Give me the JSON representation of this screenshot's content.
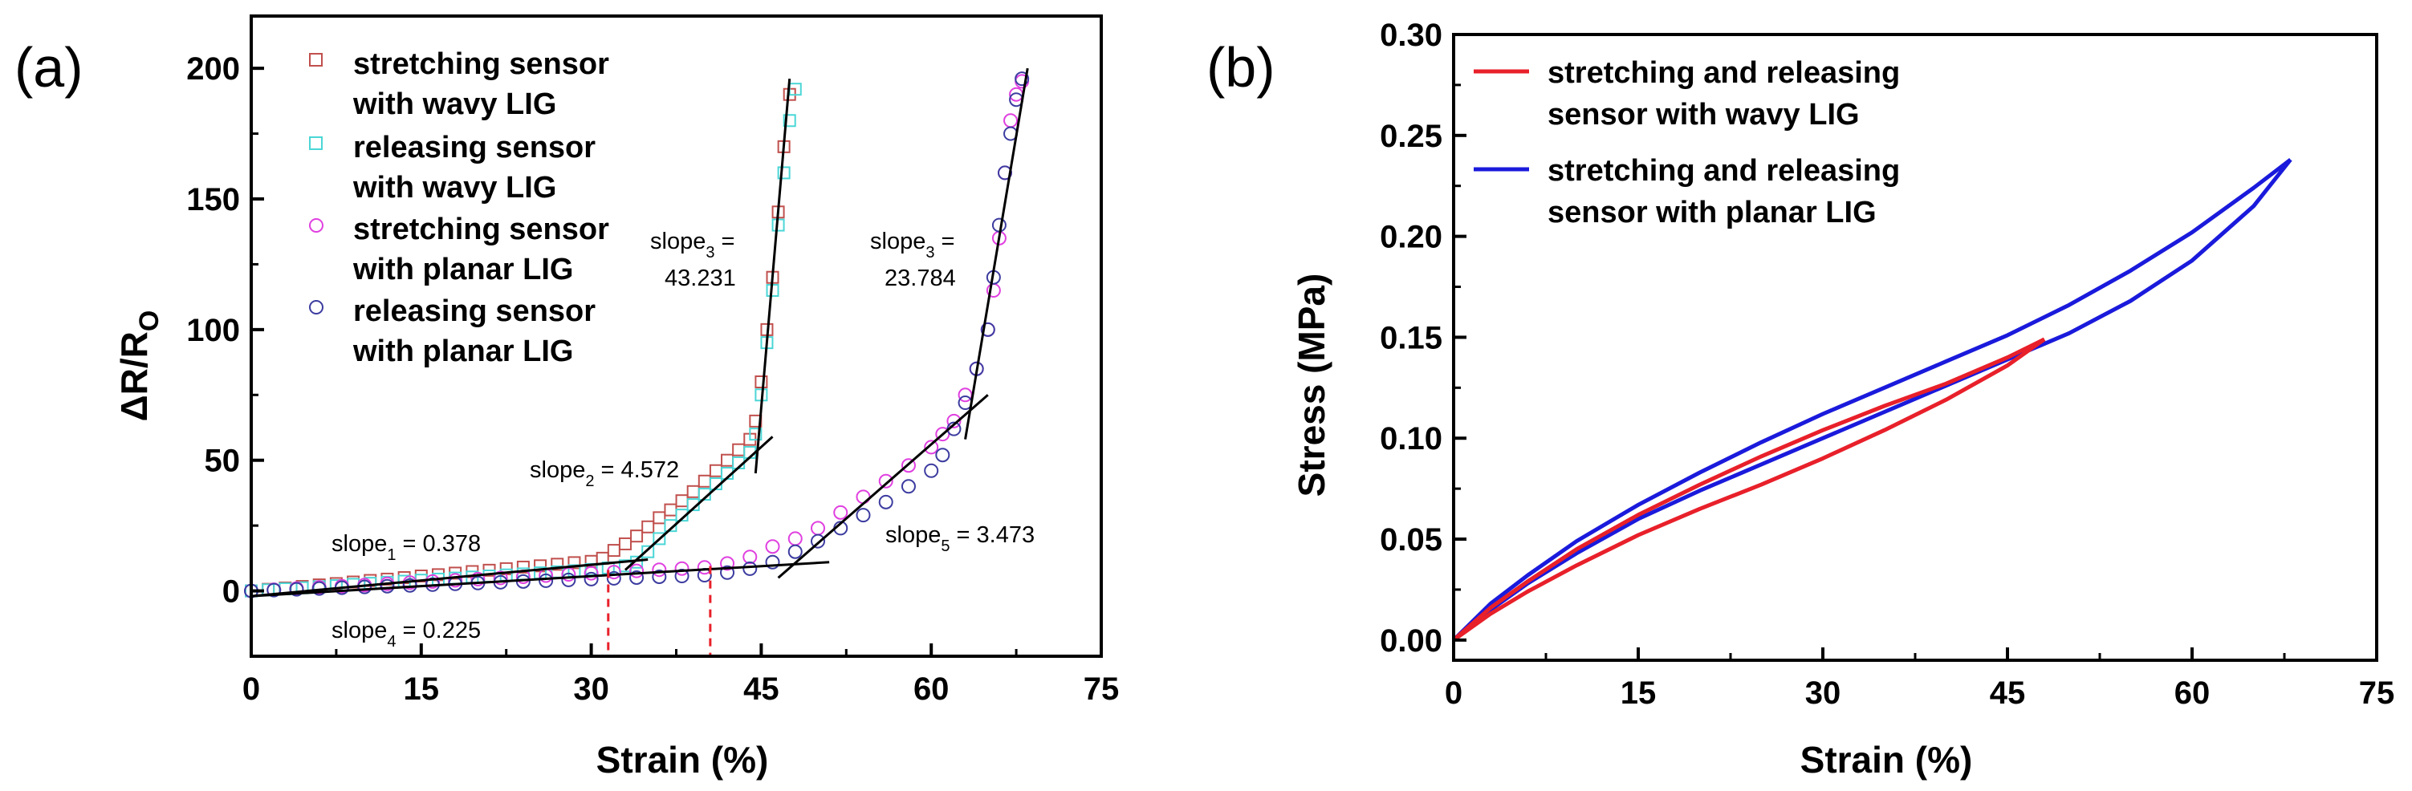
{
  "chart_data": [
    {
      "panel": "(a)",
      "type": "scatter",
      "xlabel": "Strain (%)",
      "ylabel_main": "ΔR/R",
      "ylabel_sub": "O",
      "xlim": [
        0,
        75
      ],
      "ylim": [
        -25,
        220
      ],
      "xticks": [
        "0",
        "15",
        "30",
        "45",
        "60",
        "75"
      ],
      "yticks": [
        "0",
        "50",
        "100",
        "150",
        "200"
      ],
      "grid": false,
      "legend_position": "top-left",
      "series": [
        {
          "name_line1": "stretching sensor",
          "name_line2": "with wavy LIG",
          "marker": "square",
          "color": "#c0504d",
          "x": [
            0,
            1.5,
            3,
            4.5,
            6,
            7.5,
            9,
            10.5,
            12,
            13.5,
            15,
            16.5,
            18,
            19.5,
            21,
            22.5,
            24,
            25.5,
            27,
            28.5,
            30,
            31,
            32,
            33,
            34,
            35,
            36,
            37,
            38,
            39,
            40,
            41,
            42,
            43,
            44,
            44.5,
            45,
            45.5,
            46,
            46.5,
            47,
            47.5
          ],
          "y": [
            0,
            0.6,
            1.1,
            1.7,
            2.3,
            2.8,
            3.4,
            4,
            4.5,
            5.1,
            5.7,
            6.2,
            6.8,
            7.4,
            7.9,
            8.5,
            9.1,
            9.6,
            10.2,
            10.8,
            11.3,
            12.5,
            15.5,
            18,
            21,
            24.5,
            28,
            31,
            34.5,
            38,
            42,
            46,
            50,
            54,
            58,
            65,
            80,
            100,
            120,
            145,
            170,
            190
          ]
        },
        {
          "name_line1": "releasing sensor",
          "name_line2": "with wavy LIG",
          "marker": "square",
          "color": "#4bd6d6",
          "x": [
            0,
            1.5,
            3,
            4.5,
            6,
            7.5,
            9,
            10.5,
            12,
            13.5,
            15,
            16.5,
            18,
            19.5,
            21,
            22.5,
            24,
            25.5,
            27,
            28.5,
            30,
            31.5,
            33,
            34,
            35,
            36,
            37,
            38,
            39,
            40,
            41,
            42,
            43,
            44,
            44.5,
            45,
            45.5,
            46,
            46.5,
            47,
            47.5,
            48
          ],
          "y": [
            0,
            0.4,
            0.8,
            1.2,
            1.6,
            2,
            2.5,
            2.9,
            3.3,
            3.7,
            4.1,
            4.5,
            4.9,
            5.3,
            5.7,
            6.1,
            6.5,
            6.9,
            7.3,
            7.7,
            8.2,
            8.8,
            9.6,
            11,
            15,
            20,
            25,
            29,
            33,
            37,
            41,
            45,
            49,
            53,
            60,
            75,
            95,
            115,
            140,
            160,
            180,
            192
          ]
        },
        {
          "name_line1": "stretching sensor",
          "name_line2": "with planar LIG",
          "marker": "circle",
          "color": "#e040e0",
          "x": [
            0,
            2,
            4,
            6,
            8,
            10,
            12,
            14,
            16,
            18,
            20,
            22,
            24,
            26,
            28,
            30,
            32,
            34,
            36,
            38,
            40,
            42,
            44,
            46,
            48,
            50,
            52,
            54,
            56,
            58,
            60,
            61,
            62,
            63,
            64,
            65,
            65.5,
            66,
            66.5,
            67,
            67.5,
            68
          ],
          "y": [
            0,
            0.45,
            0.9,
            1.35,
            1.8,
            2.25,
            2.7,
            3.15,
            3.6,
            4.05,
            4.5,
            4.95,
            5.4,
            5.85,
            6.3,
            6.75,
            7.2,
            7.65,
            8.1,
            8.55,
            9,
            10.5,
            13,
            17,
            20,
            24,
            30,
            36,
            42,
            48,
            55,
            60,
            65,
            75,
            85,
            100,
            115,
            135,
            160,
            180,
            190,
            195
          ]
        },
        {
          "name_line1": "releasing sensor",
          "name_line2": "with planar LIG",
          "marker": "circle",
          "color": "#3c3ca0",
          "x": [
            0,
            2,
            4,
            6,
            8,
            10,
            12,
            14,
            16,
            18,
            20,
            22,
            24,
            26,
            28,
            30,
            32,
            34,
            36,
            38,
            40,
            42,
            44,
            46,
            48,
            50,
            52,
            54,
            56,
            58,
            60,
            61,
            62,
            63,
            64,
            65,
            65.5,
            66,
            66.5,
            67,
            67.5,
            68
          ],
          "y": [
            0,
            0.3,
            0.6,
            0.9,
            1.2,
            1.5,
            1.8,
            2.1,
            2.4,
            2.7,
            3,
            3.3,
            3.6,
            3.9,
            4.2,
            4.5,
            4.8,
            5.1,
            5.4,
            5.7,
            6,
            7,
            8.5,
            11,
            15,
            19,
            24,
            29,
            34,
            40,
            46,
            52,
            62,
            72,
            85,
            100,
            120,
            140,
            160,
            175,
            188,
            196
          ]
        }
      ],
      "fit_lines": [
        {
          "label_main": "slope",
          "label_sub": "1",
          "label_value": " = 0.378",
          "x": [
            0,
            35
          ],
          "y": [
            -2,
            12
          ]
        },
        {
          "label_main": "slope",
          "label_sub": "2",
          "label_value": " = 4.572",
          "x": [
            33,
            46
          ],
          "y": [
            8,
            59
          ]
        },
        {
          "label_main": "slope",
          "label_sub": "3",
          "label_value": " =",
          "label_value2": "43.231",
          "x": [
            44.5,
            47.5
          ],
          "y": [
            45,
            196
          ]
        },
        {
          "label_main": "slope",
          "label_sub": "4",
          "label_value": " = 0.225",
          "x": [
            0,
            51
          ],
          "y": [
            -2,
            11
          ]
        },
        {
          "label_main": "slope",
          "label_sub": "5",
          "label_value": " = 3.473",
          "x": [
            46.5,
            65
          ],
          "y": [
            5,
            75
          ]
        },
        {
          "label_main": "slope",
          "label_sub": "3",
          "label_value": " =",
          "label_value2": "23.784",
          "x": [
            63,
            68.5
          ],
          "y": [
            58,
            200
          ]
        }
      ],
      "markers_vertical": [
        {
          "x": 31.5,
          "y_top": 8
        },
        {
          "x": 40.5,
          "y_top": 9.5
        }
      ]
    },
    {
      "panel": "(b)",
      "type": "line",
      "xlabel": "Strain (%)",
      "ylabel": "Stress (MPa)",
      "xlim": [
        0,
        75
      ],
      "ylim": [
        -0.01,
        0.3
      ],
      "xticks": [
        "0",
        "15",
        "30",
        "45",
        "60",
        "75"
      ],
      "yticks": [
        "0.00",
        "0.05",
        "0.10",
        "0.15",
        "0.20",
        "0.25",
        "0.30"
      ],
      "grid": false,
      "legend_position": "top-left",
      "series": [
        {
          "name_line1": "stretching and releasing",
          "name_line2": "sensor with wavy LIG",
          "color": "#e8202a",
          "loading": {
            "x": [
              0,
              3,
              6,
              10,
              15,
              20,
              25,
              30,
              35,
              40,
              45,
              48
            ],
            "y": [
              0,
              0.016,
              0.029,
              0.045,
              0.062,
              0.077,
              0.091,
              0.104,
              0.116,
              0.127,
              0.14,
              0.149
            ]
          },
          "unloading": {
            "x": [
              48,
              45,
              40,
              35,
              30,
              25,
              20,
              15,
              10,
              6,
              3,
              0
            ],
            "y": [
              0.149,
              0.136,
              0.119,
              0.104,
              0.09,
              0.077,
              0.065,
              0.052,
              0.037,
              0.024,
              0.013,
              0
            ]
          }
        },
        {
          "name_line1": "stretching and releasing",
          "name_line2": "sensor with planar LIG",
          "color": "#1a1adc",
          "loading": {
            "x": [
              0,
              3,
              6,
              10,
              15,
              20,
              25,
              30,
              35,
              40,
              45,
              50,
              55,
              60,
              65,
              68
            ],
            "y": [
              0,
              0.018,
              0.032,
              0.049,
              0.067,
              0.083,
              0.098,
              0.112,
              0.125,
              0.138,
              0.151,
              0.166,
              0.183,
              0.202,
              0.224,
              0.238
            ]
          },
          "unloading": {
            "x": [
              68,
              65,
              60,
              55,
              50,
              45,
              40,
              35,
              30,
              25,
              20,
              15,
              10,
              6,
              3,
              0
            ],
            "y": [
              0.238,
              0.215,
              0.188,
              0.168,
              0.152,
              0.139,
              0.126,
              0.113,
              0.1,
              0.087,
              0.074,
              0.06,
              0.043,
              0.028,
              0.015,
              0
            ]
          }
        }
      ]
    }
  ]
}
